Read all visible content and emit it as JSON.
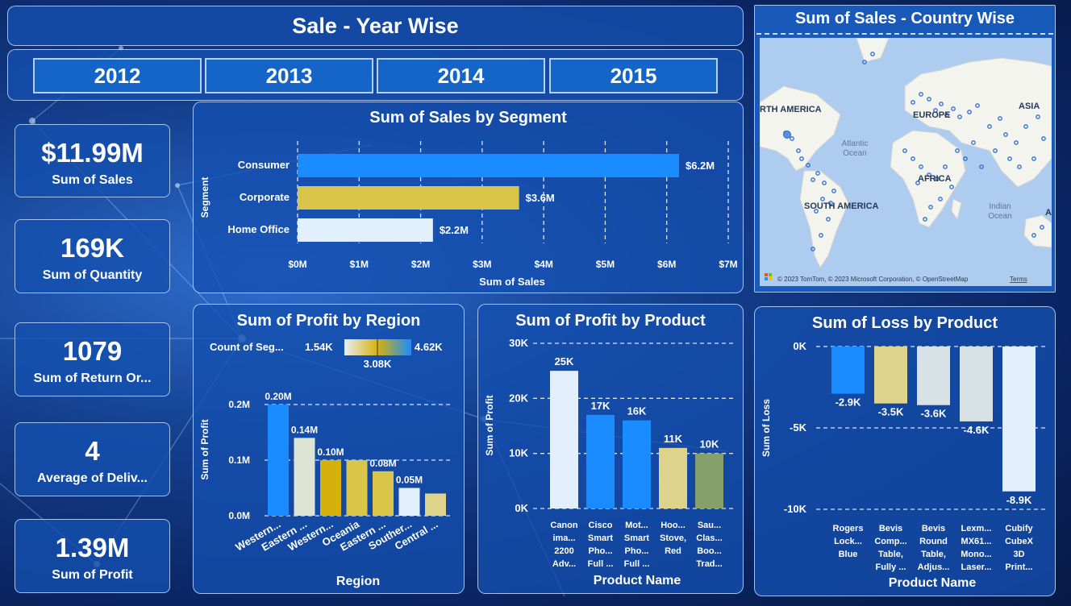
{
  "header": {
    "title": "Sale - Year Wise"
  },
  "years": [
    "2012",
    "2013",
    "2014",
    "2015"
  ],
  "kpis": [
    {
      "value": "$11.99M",
      "label": "Sum of Sales"
    },
    {
      "value": "169K",
      "label": "Sum of Quantity"
    },
    {
      "value": "1079",
      "label": "Sum of Return Or..."
    },
    {
      "value": "4",
      "label": "Average of Deliv..."
    },
    {
      "value": "1.39M",
      "label": "Sum of Profit"
    }
  ],
  "segment_chart": {
    "title": "Sum of Sales by Segment",
    "xlabel": "Sum of Sales",
    "ylabel": "Segment",
    "ticks": [
      "$0M",
      "$1M",
      "$2M",
      "$3M",
      "$4M",
      "$5M",
      "$6M",
      "$7M"
    ]
  },
  "region_chart": {
    "title": "Sum of Profit by Region",
    "legend_label": "Count of Seg...",
    "legend_min": "1.54K",
    "legend_mid": "3.08K",
    "legend_max": "4.62K",
    "xlabel": "Region",
    "ylabel": "Sum of Profit",
    "ticks": [
      "0.0M",
      "0.1M",
      "0.2M"
    ]
  },
  "product_chart": {
    "title": "Sum of Profit by Product",
    "xlabel": "Product Name",
    "ylabel": "Sum of Profit",
    "ticks": [
      "0K",
      "10K",
      "20K",
      "30K"
    ]
  },
  "loss_chart": {
    "title": "Sum of Loss by Product",
    "xlabel": "Product Name",
    "ylabel": "Sum of Loss",
    "ticks": [
      "0K",
      "-5K",
      "-10K"
    ]
  },
  "map": {
    "title": "Sum of Sales - Country Wise",
    "labels": {
      "north_america": "RTH AMERICA",
      "europe": "EUROPE",
      "asia": "ASIA",
      "africa": "AFRICA",
      "south_america": "SOUTH AMERICA",
      "atlantic1": "Atlantic",
      "atlantic2": "Ocean",
      "indian1": "Indian",
      "indian2": "Ocean",
      "edge_a": "A"
    },
    "attribution": "© 2023 TomTom, © 2023 Microsoft Corporation, © OpenStreetMap",
    "terms": "Terms"
  },
  "colors": {
    "blue": "#1a8cff",
    "gold": "#d8c54a",
    "light": "#e2effd",
    "pale": "#dde4d2",
    "mustard": "#d6b10c",
    "khaki": "#ddd38a",
    "olive": "#86a06a",
    "slate": "#d8e2e6"
  },
  "chart_data": [
    {
      "type": "bar",
      "title": "Sum of Sales by Segment",
      "xlabel": "Sum of Sales",
      "ylabel": "Segment",
      "orientation": "horizontal",
      "categories": [
        "Consumer",
        "Corporate",
        "Home Office"
      ],
      "values": [
        6.2,
        3.6,
        2.2
      ],
      "labels": [
        "$6.2M",
        "$3.6M",
        "$2.2M"
      ],
      "colors": [
        "blue",
        "gold",
        "light"
      ],
      "xlim": [
        0,
        7
      ],
      "grid": true
    },
    {
      "type": "bar",
      "title": "Sum of Profit by Region",
      "xlabel": "Region",
      "ylabel": "Sum of Profit",
      "categories": [
        "Western...",
        "Eastern ...",
        "Western...",
        "Oceania",
        "Eastern ...",
        "Souther...",
        "Central ..."
      ],
      "values": [
        0.2,
        0.14,
        0.1,
        0.1,
        0.08,
        0.05,
        0.04
      ],
      "labels": [
        "0.20M",
        "0.14M",
        "0.10M",
        "",
        "0.08M",
        "0.05M",
        ""
      ],
      "colors": [
        "blue",
        "pale",
        "mustard",
        "gold",
        "gold",
        "light",
        "khaki"
      ],
      "ylim": [
        0,
        0.2
      ],
      "grid": true
    },
    {
      "type": "bar",
      "title": "Sum of Profit by Product",
      "xlabel": "Product Name",
      "ylabel": "Sum of Profit",
      "categories": [
        [
          "Canon",
          "ima...",
          "2200",
          "Adv..."
        ],
        [
          "Cisco",
          "Smart",
          "Pho...",
          "Full ..."
        ],
        [
          "Mot...",
          "Smart",
          "Pho...",
          "Full ..."
        ],
        [
          "Hoo...",
          "Stove,",
          "Red"
        ],
        [
          "Sau...",
          "Clas...",
          "Boo...",
          "Trad..."
        ]
      ],
      "values": [
        25,
        17,
        16,
        11,
        10
      ],
      "labels": [
        "25K",
        "17K",
        "16K",
        "11K",
        "10K"
      ],
      "colors": [
        "light",
        "blue",
        "blue",
        "khaki",
        "olive"
      ],
      "ylim": [
        0,
        30
      ],
      "grid": true
    },
    {
      "type": "bar",
      "title": "Sum of Loss by Product",
      "xlabel": "Product Name",
      "ylabel": "Sum of Loss",
      "categories": [
        [
          "Rogers",
          "Lock...",
          "Blue"
        ],
        [
          "Bevis",
          "Comp...",
          "Table,",
          "Fully ..."
        ],
        [
          "Bevis",
          "Round",
          "Table,",
          "Adjus..."
        ],
        [
          "Lexm...",
          "MX61...",
          "Mono...",
          "Laser..."
        ],
        [
          "Cubify",
          "CubeX",
          "3D",
          "Print..."
        ]
      ],
      "values": [
        -2.9,
        -3.5,
        -3.6,
        -4.6,
        -8.9
      ],
      "labels": [
        "-2.9K",
        "-3.5K",
        "-3.6K",
        "-4.6K",
        "-8.9K"
      ],
      "colors": [
        "blue",
        "khaki",
        "slate",
        "slate",
        "light"
      ],
      "ylim": [
        -10,
        0
      ],
      "grid": true
    }
  ]
}
